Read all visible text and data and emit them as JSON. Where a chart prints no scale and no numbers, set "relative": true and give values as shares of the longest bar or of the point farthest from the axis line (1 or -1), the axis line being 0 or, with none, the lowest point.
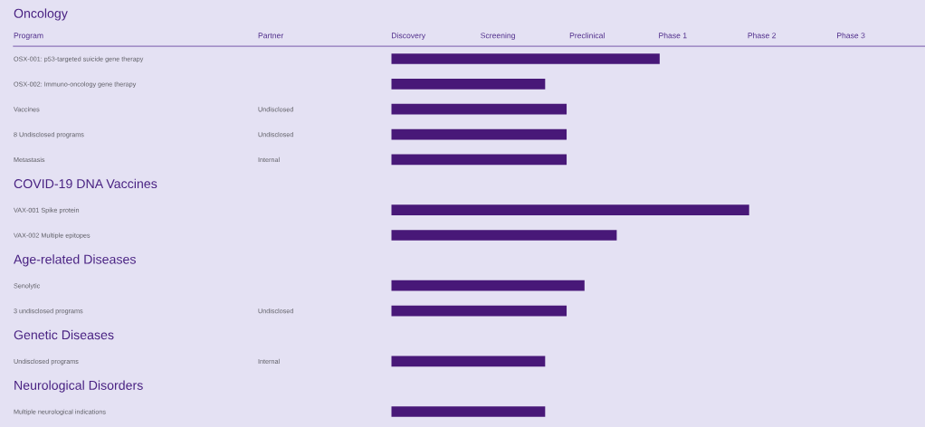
{
  "chart_data": {
    "type": "bar",
    "orientation": "horizontal",
    "relative": true,
    "title": "Oncology",
    "ylabel": "Program",
    "y2label": "Partner",
    "categories": [
      "OSX-001: p53-targeted suicide gene therapy",
      "OSX-002: Immuno-oncology gene therapy",
      "Vaccines",
      "8 Undisclosed programs",
      "Metastasis",
      null,
      "VAX-001 Spike protein",
      "VAX-002 Multiple epitopes",
      null,
      "Senolytic",
      "3 undisclosed programs",
      null,
      "Undisclosed programs",
      null,
      "Multiple neurological indications"
    ],
    "y2_categories": [
      null,
      null,
      "Undisclosed",
      "Undisclosed",
      "Internal",
      null,
      null,
      null,
      null,
      null,
      "Undisclosed",
      null,
      "Internal",
      null,
      null
    ],
    "values": [
      0.75,
      0.43,
      0.49,
      0.49,
      0.49,
      null,
      1,
      0.63,
      null,
      0.54,
      0.49,
      null,
      0.43,
      null,
      0.43
    ],
    "color": "#481878",
    "annotations": [
      "Discovery",
      "Screening",
      "Preclinical",
      "Phase 1",
      "Phase 2",
      "Phase 3",
      "COVID-19 DNA Vaccines",
      "Age-related Diseases",
      "Genetic Diseases",
      "Neurological Disorders"
    ]
  }
}
